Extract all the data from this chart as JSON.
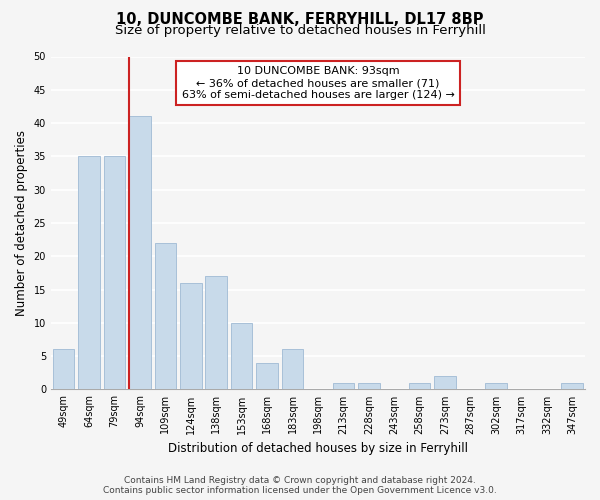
{
  "title": "10, DUNCOMBE BANK, FERRYHILL, DL17 8BP",
  "subtitle": "Size of property relative to detached houses in Ferryhill",
  "xlabel": "Distribution of detached houses by size in Ferryhill",
  "ylabel": "Number of detached properties",
  "categories": [
    "49sqm",
    "64sqm",
    "79sqm",
    "94sqm",
    "109sqm",
    "124sqm",
    "138sqm",
    "153sqm",
    "168sqm",
    "183sqm",
    "198sqm",
    "213sqm",
    "228sqm",
    "243sqm",
    "258sqm",
    "273sqm",
    "287sqm",
    "302sqm",
    "317sqm",
    "332sqm",
    "347sqm"
  ],
  "values": [
    6,
    35,
    35,
    41,
    22,
    16,
    17,
    10,
    4,
    6,
    0,
    1,
    1,
    0,
    1,
    2,
    0,
    1,
    0,
    0,
    1
  ],
  "bar_color": "#c8daea",
  "bar_edge_color": "#a8c0d8",
  "annotation_line1": "10 DUNCOMBE BANK: 93sqm",
  "annotation_line2": "← 36% of detached houses are smaller (71)",
  "annotation_line3": "63% of semi-detached houses are larger (124) →",
  "annotation_box_facecolor": "#ffffff",
  "annotation_box_edgecolor": "#cc2222",
  "vline_color": "#cc2222",
  "ylim": [
    0,
    50
  ],
  "yticks": [
    0,
    5,
    10,
    15,
    20,
    25,
    30,
    35,
    40,
    45,
    50
  ],
  "footer_line1": "Contains HM Land Registry data © Crown copyright and database right 2024.",
  "footer_line2": "Contains public sector information licensed under the Open Government Licence v3.0.",
  "background_color": "#f5f5f5",
  "plot_background_color": "#f5f5f5",
  "grid_color": "#ffffff",
  "title_fontsize": 10.5,
  "subtitle_fontsize": 9.5,
  "axis_label_fontsize": 8.5,
  "tick_fontsize": 7,
  "annotation_fontsize": 8,
  "footer_fontsize": 6.5
}
